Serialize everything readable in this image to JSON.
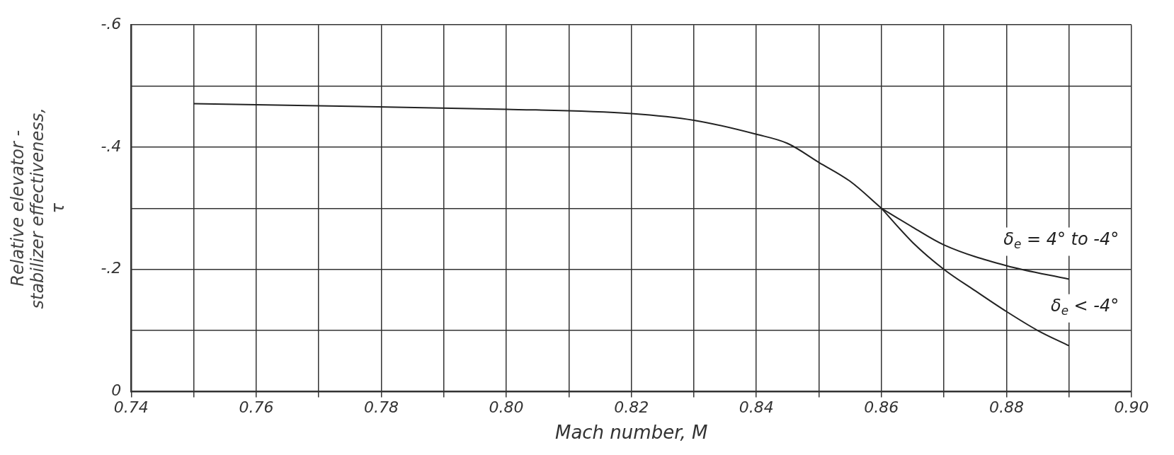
{
  "chart_data": {
    "type": "line",
    "xlabel": "Mach number, M",
    "ylabel": "Relative elevator -\nstabilizer effectiveness,\nτ",
    "xlim": [
      0.74,
      0.9
    ],
    "xticks": [
      {
        "value": 0.74,
        "label": "0.74"
      },
      {
        "value": 0.75,
        "label": null
      },
      {
        "value": 0.76,
        "label": "0.76"
      },
      {
        "value": 0.77,
        "label": null
      },
      {
        "value": 0.78,
        "label": "0.78"
      },
      {
        "value": 0.79,
        "label": null
      },
      {
        "value": 0.8,
        "label": "0.80"
      },
      {
        "value": 0.81,
        "label": null
      },
      {
        "value": 0.82,
        "label": "0.82"
      },
      {
        "value": 0.83,
        "label": null
      },
      {
        "value": 0.84,
        "label": "0.84"
      },
      {
        "value": 0.85,
        "label": null
      },
      {
        "value": 0.86,
        "label": "0.86"
      },
      {
        "value": 0.87,
        "label": null
      },
      {
        "value": 0.88,
        "label": "0.88"
      },
      {
        "value": 0.89,
        "label": null
      },
      {
        "value": 0.9,
        "label": "0.90"
      }
    ],
    "ylim": [
      0,
      -0.6
    ],
    "yticks": [
      {
        "value": 0,
        "label": "0"
      },
      {
        "value": -0.1,
        "label": null
      },
      {
        "value": -0.2,
        "label": "-.2"
      },
      {
        "value": -0.3,
        "label": null
      },
      {
        "value": -0.4,
        "label": "-.4"
      },
      {
        "value": -0.5,
        "label": null
      },
      {
        "value": -0.6,
        "label": "-.6"
      }
    ],
    "grid": true,
    "legend": false,
    "marker": "none",
    "line_style": "solid",
    "series": [
      {
        "color": "#222222",
        "x": [
          0.75,
          0.8,
          0.82,
          0.83,
          0.84,
          0.845,
          0.85,
          0.855,
          0.86
        ],
        "values": [
          -0.471,
          -0.462,
          -0.455,
          -0.444,
          -0.421,
          -0.406,
          -0.375,
          -0.344,
          -0.3
        ]
      },
      {
        "name": "δ$_{e}$ = 4° to -4°",
        "color": "#222222",
        "x": [
          0.86,
          0.865,
          0.87,
          0.88,
          0.89
        ],
        "values": [
          -0.3,
          -0.269,
          -0.24,
          -0.206,
          -0.184
        ]
      },
      {
        "name": "δ$_{e}$ < -4°",
        "color": "#222222",
        "x": [
          0.86,
          0.865,
          0.87,
          0.875,
          0.88,
          0.885,
          0.89
        ],
        "values": [
          -0.3,
          -0.244,
          -0.2,
          -0.165,
          -0.131,
          -0.1,
          -0.075
        ]
      }
    ]
  }
}
